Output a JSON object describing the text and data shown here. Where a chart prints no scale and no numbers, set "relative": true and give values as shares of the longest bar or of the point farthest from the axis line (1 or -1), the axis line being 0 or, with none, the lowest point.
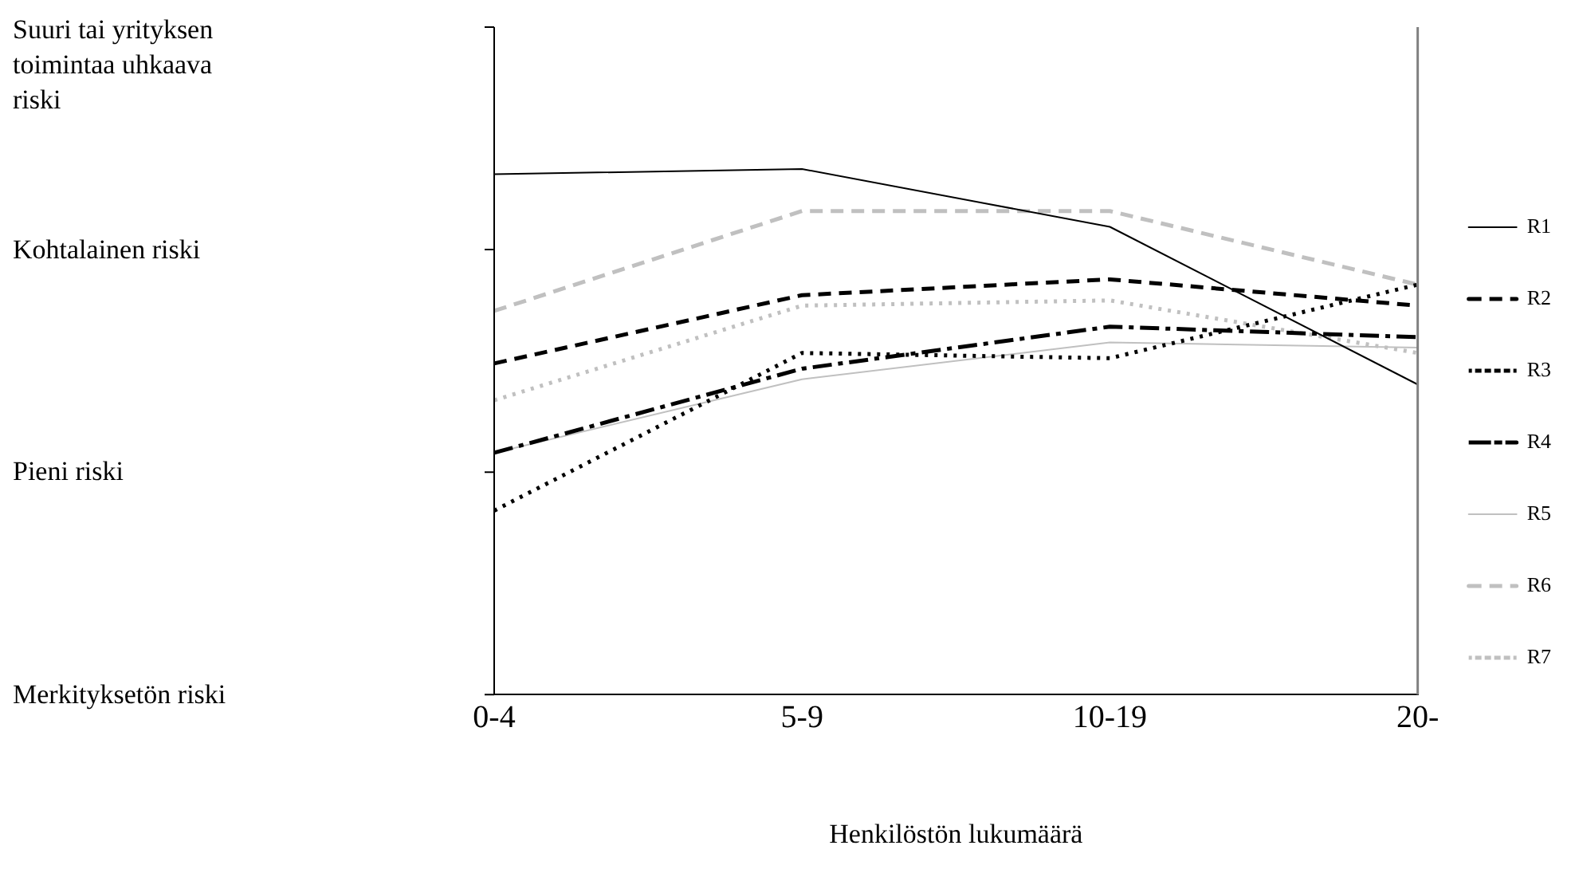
{
  "chart_data": {
    "type": "line",
    "xlabel": "Henkilöstön lukumäärä",
    "categories": [
      "0-4",
      "5-9",
      "10-19",
      "20-"
    ],
    "relative": true,
    "annotations": [
      "Suuri tai yrityksen toimintaa uhkaava riski",
      "Kohtalainen riski",
      "Pieni riski",
      "Merkityksetön riski"
    ],
    "grid": false,
    "legend": "right",
    "marker": "none",
    "series": [
      {
        "name": "R1",
        "color": "#000000",
        "line_style": "solid",
        "values": [
          0.99,
          1.0,
          0.89,
          0.59
        ]
      },
      {
        "name": "R2",
        "color": "#000000",
        "line_style": "dashed",
        "values": [
          0.63,
          0.76,
          0.79,
          0.74
        ]
      },
      {
        "name": "R3",
        "color": "#000000",
        "line_style": "dotted",
        "values": [
          0.35,
          0.65,
          0.64,
          0.78
        ]
      },
      {
        "name": "R4",
        "color": "#000000",
        "line_style": "dashdot",
        "values": [
          0.46,
          0.62,
          0.7,
          0.68
        ]
      },
      {
        "name": "R5",
        "color": "#c0c0c0",
        "line_style": "solid",
        "values": [
          0.46,
          0.6,
          0.67,
          0.66
        ]
      },
      {
        "name": "R6",
        "color": "#c0c0c0",
        "line_style": "dashed",
        "values": [
          0.73,
          0.92,
          0.92,
          0.78
        ]
      },
      {
        "name": "R7",
        "color": "#c0c0c0",
        "line_style": "dotted",
        "values": [
          0.56,
          0.74,
          0.75,
          0.65
        ]
      }
    ]
  }
}
